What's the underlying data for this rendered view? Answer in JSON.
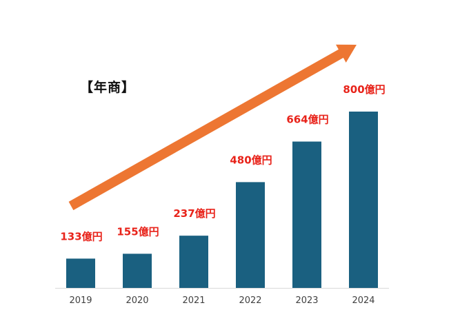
{
  "chart_data": {
    "type": "bar",
    "title": "【年商】",
    "categories": [
      "2019",
      "2020",
      "2021",
      "2022",
      "2023",
      "2024"
    ],
    "values": [
      133,
      155,
      237,
      480,
      664,
      800
    ],
    "data_labels": [
      "133億円",
      "155億円",
      "237億円",
      "480億円",
      "664億円",
      "800億円"
    ],
    "xlabel": "",
    "ylabel": "",
    "grid": false,
    "legend": "none",
    "colors": {
      "bar": "#1a6080",
      "label": "#e8231a",
      "arrow": "#ed7632",
      "baseline": "#d9d9d9",
      "tick_text": "#404040"
    },
    "annotations": [
      {
        "type": "trend-arrow",
        "direction": "upward",
        "from_category": "2019",
        "to_category": "2024"
      }
    ]
  }
}
